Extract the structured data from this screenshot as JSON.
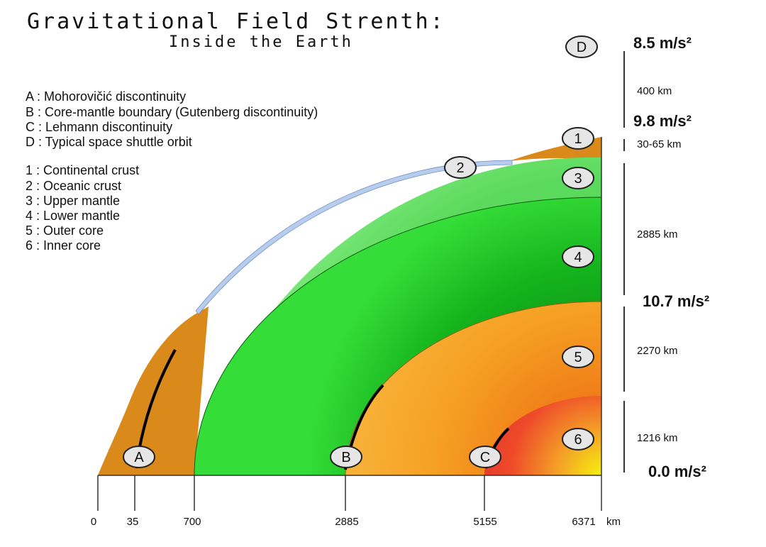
{
  "title": "Gravitational Field Strenth:",
  "subtitle": "Inside the Earth",
  "legend_letters": [
    "A : Mohorovičić discontinuity",
    "B : Core-mantle boundary (Gutenberg discontinuity)",
    "C : Lehmann discontinuity",
    "D : Typical space shuttle orbit"
  ],
  "legend_layers": [
    "1 : Continental crust",
    "2 : Oceanic crust",
    "3 : Upper mantle",
    "4 : Lower mantle",
    "5 : Outer core",
    "6 : Inner core"
  ],
  "gravity_values": [
    "8.5 m/s²",
    "9.8 m/s²",
    "10.7 m/s²",
    "0.0 m/s²"
  ],
  "thickness_labels": [
    "400 km",
    "30-65 km",
    "2885 km",
    "2270 km",
    "1216 km"
  ],
  "axis": {
    "ticks": [
      "0",
      "35",
      "700",
      "2885",
      "5155",
      "6371"
    ],
    "unit": "km"
  },
  "markers": {
    "A": "A",
    "B": "B",
    "C": "C",
    "D": "D",
    "1": "1",
    "2": "2",
    "3": "3",
    "4": "4",
    "5": "5",
    "6": "6"
  },
  "colors": {
    "continental_crust": "#d98a1a",
    "oceanic_crust": "#b8cdee",
    "upper_mantle": "#7ee67a",
    "lower_mantle": "#22cc22",
    "outer_core": "#f5a324",
    "inner_core": "#ef3f2a"
  }
}
